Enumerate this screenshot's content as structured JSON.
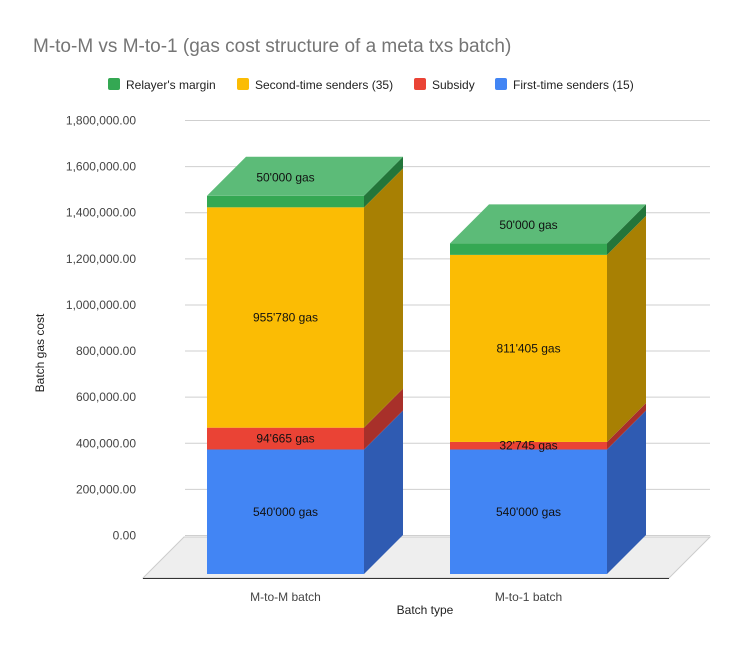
{
  "chart_data": {
    "type": "bar",
    "stacked": true,
    "style": "3d",
    "title": "M-to-M vs M-to-1 (gas cost structure of a meta txs batch)",
    "xlabel": "Batch type",
    "ylabel": "Batch gas cost",
    "ylim": [
      0,
      1800000
    ],
    "yticks": [
      "0.00",
      "200,000.00",
      "400,000.00",
      "600,000.00",
      "800,000.00",
      "1,000,000.00",
      "1,200,000.00",
      "1,400,000.00",
      "1,600,000.00",
      "1,800,000.00"
    ],
    "categories": [
      "M-to-M batch",
      "M-to-1 batch"
    ],
    "grid": true,
    "legend_position": "top",
    "series": [
      {
        "name": "First-time senders (15)",
        "color": "#4285f4",
        "side_color": "#2f5bb2",
        "values": [
          540000,
          540000
        ],
        "labels": [
          "540'000 gas",
          "540'000 gas"
        ]
      },
      {
        "name": "Subsidy",
        "color": "#ea4335",
        "side_color": "#a8302a",
        "values": [
          94665,
          32745
        ],
        "labels": [
          "94'665 gas",
          "32'745 gas"
        ]
      },
      {
        "name": "Second-time senders (35)",
        "color": "#fbbc04",
        "side_color": "#a88003",
        "values": [
          955780,
          811405
        ],
        "labels": [
          "955'780 gas",
          "811'405 gas"
        ]
      },
      {
        "name": "Relayer's margin",
        "color": "#34a853",
        "side_color": "#23753a",
        "top_color": "#5cbb78",
        "values": [
          50000,
          50000
        ],
        "labels": [
          "50'000 gas",
          "50'000 gas"
        ]
      }
    ],
    "legend_order": [
      "Relayer's margin",
      "Second-time senders (35)",
      "Subsidy",
      "First-time senders (15)"
    ]
  }
}
